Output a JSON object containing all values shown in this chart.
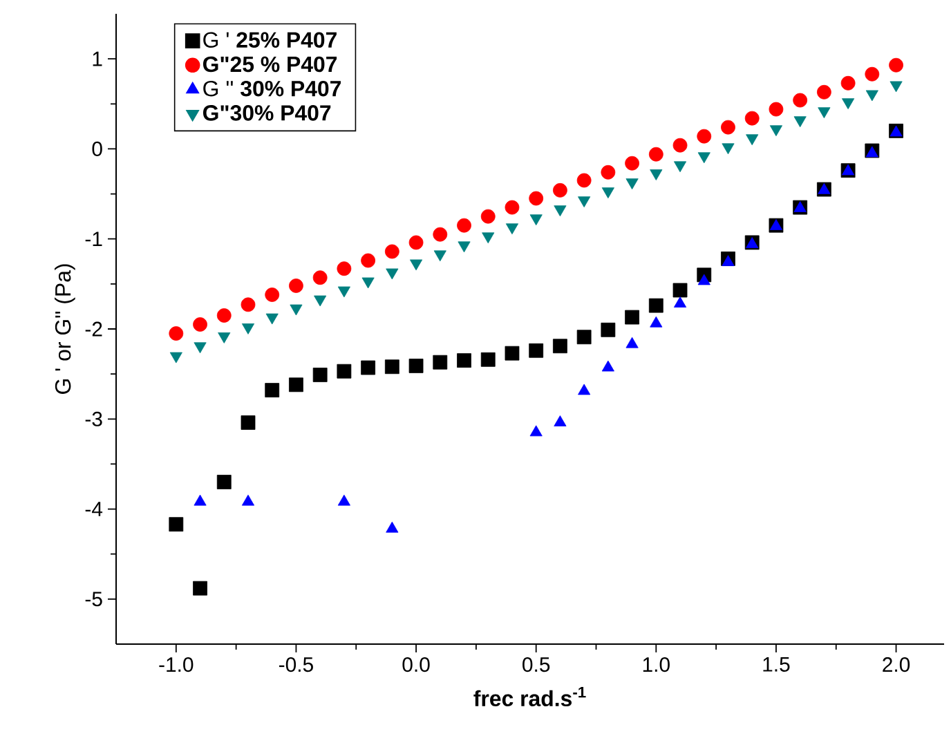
{
  "chart_data": {
    "type": "scatter",
    "xlabel": "frec rad.s$^{-1}$",
    "ylabel": "G ' or G\" (Pa)",
    "xlim": [
      -1.25,
      2.2
    ],
    "ylim": [
      -5.5,
      1.5
    ],
    "xticks": [
      {
        "value": -1,
        "label": "-1.0"
      },
      {
        "value": -0.5,
        "label": "-0.5"
      },
      {
        "value": 0,
        "label": "0.0"
      },
      {
        "value": 0.5,
        "label": "0.5"
      },
      {
        "value": 1,
        "label": "1.0"
      },
      {
        "value": 1.5,
        "label": "1.5"
      },
      {
        "value": 2,
        "label": "2.0"
      }
    ],
    "yticks": [
      -5,
      -4,
      -3,
      -2,
      -1,
      0,
      1
    ],
    "legend": "top left",
    "grid": false,
    "series": [
      {
        "name": "G ' **25%  P407**",
        "color": "#000000",
        "marker": "square",
        "x": [
          -1.0,
          -0.9,
          -0.8,
          -0.7,
          -0.6,
          -0.5,
          -0.4,
          -0.3,
          -0.2,
          -0.1,
          0.0,
          0.1,
          0.2,
          0.3,
          0.4,
          0.5,
          0.6,
          0.7,
          0.8,
          0.9,
          1.0,
          1.1,
          1.2,
          1.3,
          1.4,
          1.5,
          1.6,
          1.7,
          1.8,
          1.9,
          2.0
        ],
        "values": [
          -4.17,
          -4.88,
          -3.7,
          -3.04,
          -2.68,
          -2.62,
          -2.51,
          -2.47,
          -2.43,
          -2.42,
          -2.41,
          -2.37,
          -2.35,
          -2.34,
          -2.27,
          -2.24,
          -2.19,
          -2.09,
          -2.01,
          -1.87,
          -1.74,
          -1.57,
          -1.4,
          -1.22,
          -1.04,
          -0.85,
          -0.65,
          -0.45,
          -0.24,
          -0.02,
          0.2
        ]
      },
      {
        "name": "**G\"25 % P407**",
        "color": "#ff0000",
        "marker": "circle",
        "x": [
          -1.0,
          -0.9,
          -0.8,
          -0.7,
          -0.6,
          -0.5,
          -0.4,
          -0.3,
          -0.2,
          -0.1,
          0.0,
          0.1,
          0.2,
          0.3,
          0.4,
          0.5,
          0.6,
          0.7,
          0.8,
          0.9,
          1.0,
          1.1,
          1.2,
          1.3,
          1.4,
          1.5,
          1.6,
          1.7,
          1.8,
          1.9,
          2.0
        ],
        "values": [
          -2.05,
          -1.95,
          -1.85,
          -1.73,
          -1.62,
          -1.52,
          -1.43,
          -1.33,
          -1.24,
          -1.14,
          -1.04,
          -0.95,
          -0.85,
          -0.75,
          -0.65,
          -0.55,
          -0.46,
          -0.35,
          -0.26,
          -0.16,
          -0.06,
          0.04,
          0.14,
          0.24,
          0.34,
          0.44,
          0.54,
          0.63,
          0.73,
          0.83,
          0.93
        ]
      },
      {
        "name": "G '' **30%  P407**",
        "color": "#0000ff",
        "marker": "triangle",
        "x": [
          -0.9,
          -0.7,
          -0.3,
          -0.1,
          0.5,
          0.6,
          0.7,
          0.8,
          0.9,
          1.0,
          1.1,
          1.2,
          1.3,
          1.4,
          1.5,
          1.6,
          1.7,
          1.8,
          1.9,
          2.0
        ],
        "values": [
          -3.92,
          -3.92,
          -3.92,
          -4.22,
          -3.15,
          -3.04,
          -2.69,
          -2.43,
          -2.17,
          -1.94,
          -1.72,
          -1.47,
          -1.26,
          -1.06,
          -0.86,
          -0.66,
          -0.46,
          -0.25,
          -0.05,
          0.18
        ]
      },
      {
        "name": "**G\"30%  P407**",
        "color": "#008080",
        "marker": "triangle-down",
        "x": [
          -1.0,
          -0.9,
          -0.8,
          -0.7,
          -0.6,
          -0.5,
          -0.4,
          -0.3,
          -0.2,
          -0.1,
          0.0,
          0.1,
          0.2,
          0.3,
          0.4,
          0.5,
          0.6,
          0.7,
          0.8,
          0.9,
          1.0,
          1.1,
          1.2,
          1.3,
          1.4,
          1.5,
          1.6,
          1.7,
          1.8,
          1.9,
          2.0
        ],
        "values": [
          -2.3,
          -2.19,
          -2.08,
          -1.98,
          -1.87,
          -1.77,
          -1.67,
          -1.57,
          -1.47,
          -1.37,
          -1.27,
          -1.17,
          -1.07,
          -0.97,
          -0.87,
          -0.77,
          -0.67,
          -0.57,
          -0.47,
          -0.37,
          -0.27,
          -0.18,
          -0.08,
          0.02,
          0.12,
          0.22,
          0.32,
          0.42,
          0.52,
          0.61,
          0.71
        ]
      }
    ]
  }
}
